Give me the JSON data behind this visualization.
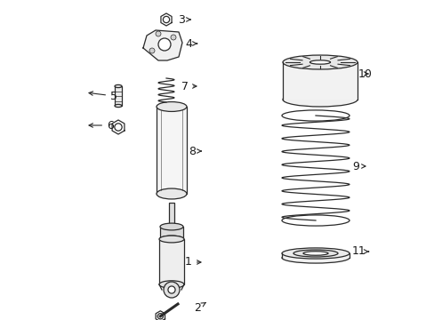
{
  "background_color": "#ffffff",
  "line_color": "#2a2a2a",
  "label_color": "#1a1a1a",
  "fig_w": 4.89,
  "fig_h": 3.6,
  "dpi": 100
}
